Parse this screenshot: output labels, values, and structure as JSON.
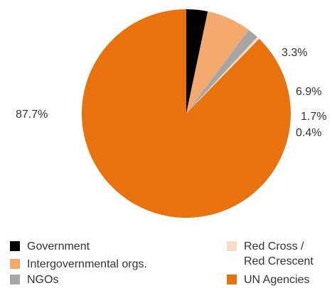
{
  "chart_data": {
    "type": "pie",
    "start": "top, clockwise",
    "slices": [
      {
        "name": "Government",
        "value": 3.3,
        "label": "3.3%",
        "color": "#000000"
      },
      {
        "name": "Intergovernmental orgs.",
        "value": 6.9,
        "label": "6.9%",
        "color": "#F4A96F"
      },
      {
        "name": "NGOs",
        "value": 1.7,
        "label": "1.7%",
        "color": "#A6A6A6"
      },
      {
        "name": "Red Cross / Red Crescent",
        "value": 0.4,
        "label": "0.4%",
        "color": "#F9DCC6"
      },
      {
        "name": "UN Agencies",
        "value": 87.7,
        "label": "87.7%",
        "color": "#E8730E"
      }
    ]
  },
  "legend": {
    "government": "Government",
    "intergovernmental": "Intergovernmental orgs.",
    "ngos": "NGOs",
    "red_cross_line1": "Red Cross /",
    "red_cross_line2": "Red Crescent",
    "un_agencies": "UN Agencies"
  }
}
